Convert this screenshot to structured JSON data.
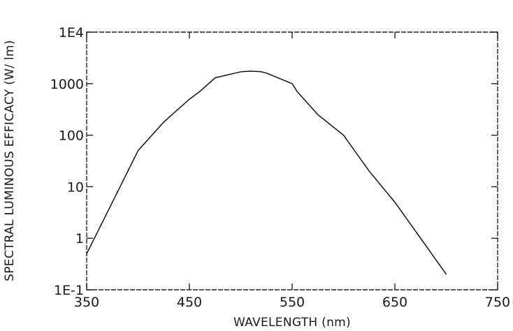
{
  "chart_data": {
    "type": "line",
    "title": "",
    "xlabel": "WAVELENGTH (nm)",
    "ylabel": "SPECTRAL LUMINOUS EFFICACY (W/ lm)",
    "xlim": [
      350,
      750
    ],
    "ylim": [
      0.1,
      10000
    ],
    "yscale": "log",
    "grid": false,
    "x_ticks": [
      350,
      450,
      550,
      650,
      750
    ],
    "x_tick_labels": [
      "350",
      "450",
      "550",
      "650",
      "750"
    ],
    "y_ticks": [
      0.1,
      1,
      10,
      100,
      1000,
      10000
    ],
    "y_tick_labels": [
      "1E-1",
      "1",
      "10",
      "100",
      "1000",
      "1E4"
    ],
    "series": [
      {
        "color": "#111111",
        "x": [
          350,
          375,
          400,
          425,
          450,
          460,
          475,
          500,
          510,
          520,
          525,
          550,
          555,
          575,
          600,
          625,
          650,
          675,
          700
        ],
        "y": [
          0.5,
          5,
          50,
          180,
          500,
          700,
          1300,
          1700,
          1750,
          1700,
          1600,
          1000,
          700,
          250,
          100,
          20,
          5,
          1,
          0.2
        ]
      }
    ]
  }
}
